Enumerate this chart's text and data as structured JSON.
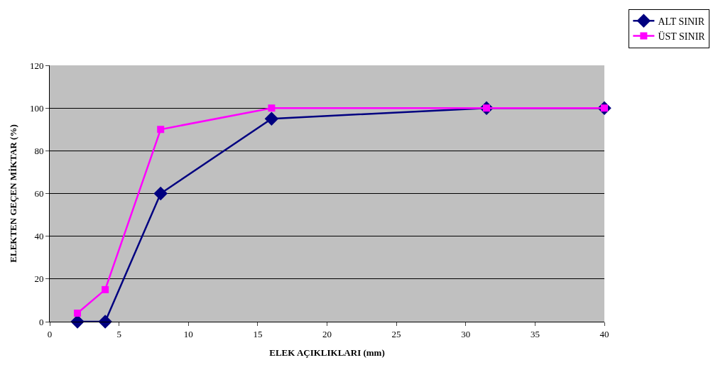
{
  "chart_data": {
    "type": "line",
    "xlabel": "ELEK AÇIKLIKLARI (mm)",
    "ylabel": "ELEKTEN GEÇEN MİKTAR (%)",
    "x": [
      2,
      4,
      8,
      16,
      31.5,
      40
    ],
    "series": [
      {
        "name": "ALT SINIR",
        "color": "#000080",
        "marker": "diamond",
        "values": [
          0,
          0,
          60,
          95,
          100,
          100
        ]
      },
      {
        "name": "ÜST SINIR",
        "color": "#ff00ff",
        "marker": "square",
        "values": [
          4,
          15,
          90,
          100,
          100,
          100
        ]
      }
    ],
    "xlim": [
      0,
      40
    ],
    "xticks": [
      0,
      5,
      10,
      15,
      20,
      25,
      30,
      35,
      40
    ],
    "ylim": [
      0,
      120
    ],
    "yticks": [
      0,
      20,
      40,
      60,
      80,
      100,
      120
    ],
    "grid": "y",
    "legend": "top right",
    "line_style": "solid"
  }
}
